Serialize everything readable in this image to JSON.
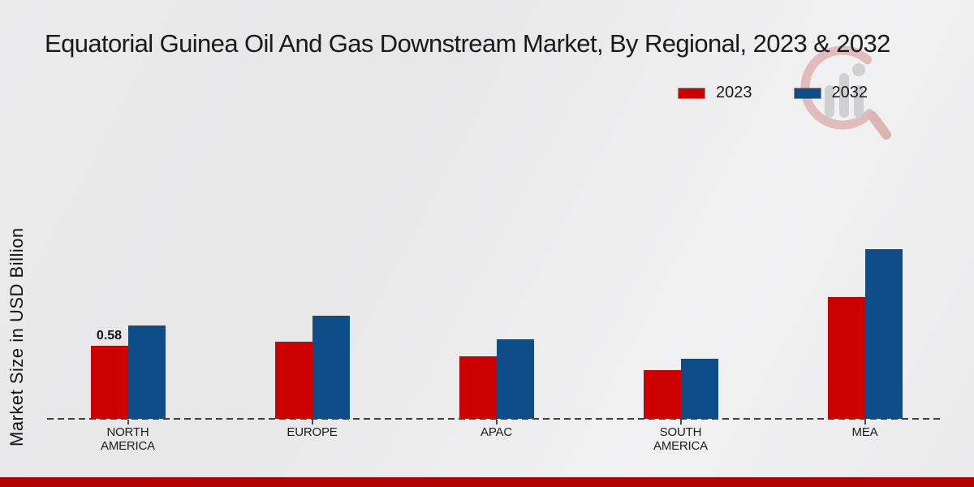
{
  "title": "Equatorial Guinea Oil And Gas Downstream Market, By Regional, 2023 & 2032",
  "y_axis_label": "Market Size in USD Billion",
  "colors": {
    "series_2023": "#cc0000",
    "series_2032": "#0e4d87",
    "footer_banner": "#b50101",
    "baseline": "#3f3f3f"
  },
  "watermark": {
    "name": "market-research-logo"
  },
  "chart_data": {
    "type": "bar",
    "title": "Equatorial Guinea Oil And Gas Downstream Market, By Regional, 2023 & 2032",
    "xlabel": "",
    "ylabel": "Market Size in USD Billion",
    "categories": [
      "NORTH AMERICA",
      "EUROPE",
      "APAC",
      "SOUTH AMERICA",
      "MEA"
    ],
    "series": [
      {
        "name": "2023",
        "color": "#cc0000",
        "values": [
          0.58,
          0.61,
          0.5,
          0.39,
          0.97
        ]
      },
      {
        "name": "2032",
        "color": "#0e4d87",
        "values": [
          0.74,
          0.82,
          0.63,
          0.48,
          1.35
        ]
      }
    ],
    "data_labels": [
      {
        "series": "2023",
        "category": "NORTH AMERICA",
        "text": "0.58"
      }
    ],
    "ylim": [
      0,
      1.45
    ],
    "grid": false,
    "legend_position": "top-right",
    "x_axis_style": "dashed-baseline"
  }
}
